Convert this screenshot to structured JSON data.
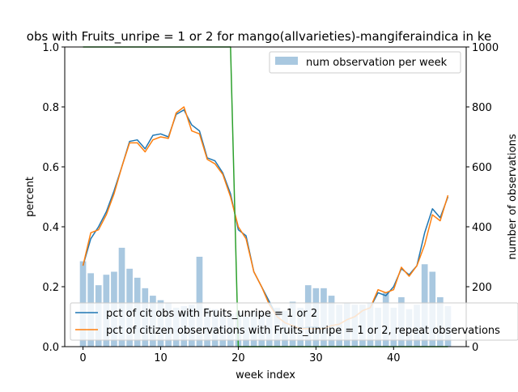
{
  "chart_data": {
    "type": "bar+line",
    "title": "obs with Fruits_unripe = 1 or 2 for mango(allvarieties)-mangiferaindica in ke",
    "xlabel": "week index",
    "ylabel": "percent",
    "ylabel_right": "number of observations",
    "xlim": [
      -2.35,
      49.35
    ],
    "ylim": [
      0,
      1.0
    ],
    "ylim_right": [
      0,
      1000
    ],
    "x_ticks": [
      "0",
      "10",
      "20",
      "30",
      "40"
    ],
    "y_ticks": [
      "0.0",
      "0.2",
      "0.4",
      "0.6",
      "0.8",
      "1.0"
    ],
    "y_ticks_right": [
      "0",
      "200",
      "400",
      "600",
      "800",
      "1000"
    ],
    "grid": false,
    "legend_bars_position": "top-right",
    "legend_lines_position": "bottom",
    "bars": {
      "name": "num observation per week",
      "color": "#a9c8e0",
      "x": [
        0,
        1,
        2,
        3,
        4,
        5,
        6,
        7,
        8,
        9,
        10,
        11,
        12,
        13,
        14,
        15,
        16,
        17,
        18,
        19,
        20,
        21,
        22,
        23,
        24,
        25,
        26,
        27,
        28,
        29,
        30,
        31,
        32,
        33,
        34,
        35,
        36,
        37,
        38,
        39,
        40,
        41,
        42,
        43,
        44,
        45,
        46,
        47
      ],
      "values": [
        285,
        245,
        205,
        240,
        250,
        330,
        260,
        230,
        195,
        170,
        155,
        145,
        130,
        135,
        140,
        300,
        130,
        125,
        120,
        110,
        115,
        100,
        120,
        115,
        110,
        130,
        120,
        150,
        130,
        205,
        195,
        195,
        170,
        140,
        145,
        140,
        140,
        145,
        130,
        180,
        130,
        165,
        125,
        140,
        275,
        250,
        165,
        135
      ]
    },
    "series": [
      {
        "name": "pct of cit obs with Fruits_unripe = 1 or 2",
        "color": "#1f77b4",
        "x": [
          0,
          1,
          2,
          3,
          4,
          5,
          6,
          7,
          8,
          9,
          10,
          11,
          12,
          13,
          14,
          15,
          16,
          17,
          18,
          19,
          20,
          21,
          22,
          23,
          24,
          25,
          26,
          27,
          28,
          29,
          30,
          31,
          32,
          33,
          34,
          35,
          36,
          37,
          38,
          39,
          40,
          41,
          42,
          43,
          44,
          45,
          46,
          47
        ],
        "values": [
          0.27,
          0.36,
          0.4,
          0.45,
          0.52,
          0.6,
          0.685,
          0.69,
          0.66,
          0.705,
          0.71,
          0.7,
          0.775,
          0.79,
          0.74,
          0.72,
          0.63,
          0.62,
          0.58,
          0.51,
          0.39,
          0.37,
          0.25,
          0.2,
          0.15,
          0.1,
          0.08,
          0.07,
          0.06,
          0.065,
          0.065,
          0.06,
          0.07,
          0.075,
          0.09,
          0.1,
          0.12,
          0.13,
          0.18,
          0.17,
          0.2,
          0.26,
          0.24,
          0.27,
          0.38,
          0.46,
          0.43,
          0.5
        ]
      },
      {
        "name": "pct of citizen observations with Fruits_unripe = 1 or 2, repeat observations",
        "color": "#ff7f0e",
        "x": [
          0,
          1,
          2,
          3,
          4,
          5,
          6,
          7,
          8,
          9,
          10,
          11,
          12,
          13,
          14,
          15,
          16,
          17,
          18,
          19,
          20,
          21,
          22,
          23,
          24,
          25,
          26,
          27,
          28,
          29,
          30,
          31,
          32,
          33,
          34,
          35,
          36,
          37,
          38,
          39,
          40,
          41,
          42,
          43,
          44,
          45,
          46,
          47
        ],
        "values": [
          0.27,
          0.38,
          0.39,
          0.44,
          0.51,
          0.6,
          0.68,
          0.68,
          0.65,
          0.69,
          0.7,
          0.695,
          0.78,
          0.8,
          0.72,
          0.71,
          0.625,
          0.61,
          0.575,
          0.5,
          0.4,
          0.36,
          0.25,
          0.2,
          0.14,
          0.1,
          0.08,
          0.07,
          0.06,
          0.06,
          0.06,
          0.06,
          0.07,
          0.075,
          0.09,
          0.1,
          0.12,
          0.13,
          0.19,
          0.18,
          0.19,
          0.265,
          0.235,
          0.27,
          0.34,
          0.44,
          0.42,
          0.505
        ]
      },
      {
        "name": "",
        "color": "#2ca02c",
        "x": [
          0,
          19,
          20,
          47
        ],
        "values": [
          1.0,
          1.0,
          0.0,
          0.0
        ]
      }
    ]
  }
}
